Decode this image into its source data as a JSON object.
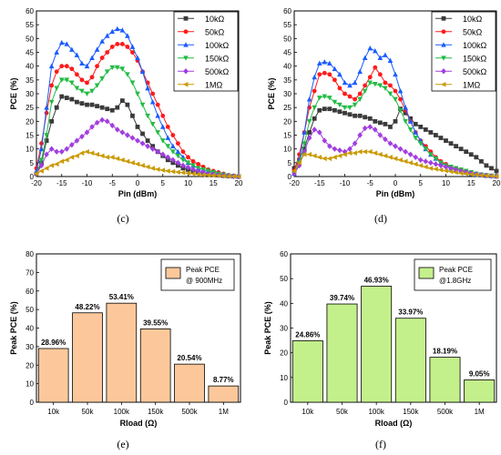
{
  "chart_data": [
    {
      "panel": "(c)",
      "type": "line",
      "xlabel": "Pin (dBm)",
      "ylabel": "PCE (%)",
      "xlim": [
        -20,
        20
      ],
      "ylim": [
        0,
        60
      ],
      "xticks": [
        -20,
        -15,
        -10,
        -5,
        0,
        5,
        10,
        15,
        20
      ],
      "yticks": [
        0,
        5,
        10,
        15,
        20,
        25,
        30,
        35,
        40,
        45,
        50,
        55,
        60
      ],
      "x_tick_labels": [
        "-20",
        "-15",
        "-10",
        "-5",
        "0",
        "5",
        "10",
        "15",
        "20"
      ],
      "y_tick_labels": [
        "0",
        "5",
        "10",
        "15",
        "20",
        "25",
        "30",
        "35",
        "40",
        "45",
        "50",
        "55",
        "60"
      ],
      "legend_position": "top-right",
      "grid": false,
      "x": [
        -20,
        -19,
        -18,
        -17,
        -16,
        -15,
        -14,
        -13,
        -12,
        -11,
        -10,
        -9,
        -8,
        -7,
        -6,
        -5,
        -4,
        -3,
        -2,
        -1,
        0,
        1,
        2,
        3,
        4,
        5,
        6,
        7,
        8,
        9,
        10,
        11,
        12,
        13,
        14,
        15,
        16,
        17,
        18,
        19,
        20
      ],
      "series": [
        {
          "name": "10kΩ",
          "color": "#3a3a3a",
          "marker": "square",
          "values": [
            1,
            5,
            13,
            20,
            25,
            29,
            28.5,
            28,
            27,
            26.5,
            26,
            26,
            25.5,
            25,
            24.5,
            24,
            25,
            27.5,
            26,
            22,
            18,
            15.5,
            13,
            11,
            9,
            7.5,
            6,
            5,
            4,
            3,
            2.5,
            2,
            1.5,
            1.2,
            1,
            0.8,
            0.5,
            0.3,
            0.2,
            0.1,
            0
          ]
        },
        {
          "name": "50kΩ",
          "color": "#ff1a1a",
          "marker": "circle",
          "values": [
            3,
            12,
            23,
            33,
            38,
            40,
            40,
            39,
            37,
            35,
            34,
            36,
            40,
            43,
            45,
            47,
            48,
            48,
            47,
            45,
            42,
            38,
            34,
            30,
            26,
            22,
            18,
            15,
            12,
            9,
            7,
            5.5,
            4.5,
            3.5,
            2.5,
            2,
            1.5,
            1,
            0.5,
            0.3,
            0.1
          ]
        },
        {
          "name": "100kΩ",
          "color": "#1a5cff",
          "marker": "triangle",
          "values": [
            2,
            10,
            25,
            40,
            45,
            48.5,
            48,
            46,
            44,
            41,
            40,
            43,
            46,
            49,
            51,
            52.5,
            53.5,
            53,
            51,
            47,
            43,
            38,
            32,
            27,
            22,
            18,
            14,
            11,
            9,
            7,
            5,
            4,
            3,
            2.5,
            2,
            1.5,
            1,
            0.7,
            0.4,
            0.2,
            0
          ]
        },
        {
          "name": "150kΩ",
          "color": "#22bb44",
          "marker": "triangle-down",
          "values": [
            1,
            6,
            15,
            27,
            32,
            35,
            35,
            34,
            32,
            31,
            30,
            31,
            33,
            35.5,
            38,
            39.5,
            39.5,
            39,
            37,
            34,
            30,
            26,
            22,
            19,
            16,
            13,
            11,
            9,
            7.5,
            6,
            5,
            4,
            3,
            2.5,
            2,
            1.5,
            1,
            0.6,
            0.3,
            0.1,
            0
          ]
        },
        {
          "name": "500kΩ",
          "color": "#a23ee0",
          "marker": "diamond",
          "values": [
            1,
            4,
            8,
            10,
            9,
            9,
            10,
            11.5,
            13,
            14.5,
            16,
            18,
            19.5,
            20.5,
            20,
            18.5,
            17,
            16,
            15,
            14,
            13,
            12,
            11,
            10,
            9,
            8,
            7,
            6,
            5,
            4,
            3.3,
            2.6,
            2,
            1.5,
            1,
            0.8,
            0.5,
            0.3,
            0.2,
            0.1,
            0
          ]
        },
        {
          "name": "1MΩ",
          "color": "#c99a00",
          "marker": "triangle-left",
          "values": [
            1,
            2,
            3,
            4,
            4.5,
            5.5,
            6,
            7,
            7.5,
            8.5,
            9,
            8.5,
            8,
            7.5,
            7,
            7,
            6.5,
            6,
            5.5,
            5,
            4.5,
            4,
            3.5,
            3,
            2.6,
            2.3,
            2,
            1.8,
            1.6,
            1.4,
            1.2,
            1,
            0.8,
            0.6,
            0.5,
            0.4,
            0.3,
            0.2,
            0.1,
            0.05,
            0
          ]
        }
      ]
    },
    {
      "panel": "(d)",
      "type": "line",
      "xlabel": "Pin (dBm)",
      "ylabel": "PCE (%)",
      "xlim": [
        -20,
        20
      ],
      "ylim": [
        0,
        60
      ],
      "xticks": [
        -20,
        -15,
        -10,
        -5,
        0,
        5,
        10,
        15,
        20
      ],
      "yticks": [
        0,
        5,
        10,
        15,
        20,
        25,
        30,
        35,
        40,
        45,
        50,
        55,
        60
      ],
      "x_tick_labels": [
        "-20",
        "-15",
        "-10",
        "-5",
        "0",
        "5",
        "10",
        "15",
        "20"
      ],
      "y_tick_labels": [
        "0",
        "5",
        "10",
        "15",
        "20",
        "25",
        "30",
        "35",
        "40",
        "45",
        "50",
        "55",
        "60"
      ],
      "legend_position": "top-right",
      "grid": false,
      "x": [
        -20,
        -19,
        -18,
        -17,
        -16,
        -15,
        -14,
        -13,
        -12,
        -11,
        -10,
        -9,
        -8,
        -7,
        -6,
        -5,
        -4,
        -3,
        -2,
        -1,
        0,
        1,
        2,
        3,
        4,
        5,
        6,
        7,
        8,
        9,
        10,
        11,
        12,
        13,
        14,
        15,
        16,
        17,
        18,
        19,
        20
      ],
      "series": [
        {
          "name": "10kΩ",
          "color": "#3a3a3a",
          "marker": "square",
          "values": [
            3,
            6,
            10,
            16,
            21,
            24,
            24.5,
            24.5,
            24,
            23.5,
            23,
            22.5,
            22,
            22,
            21.5,
            21,
            20,
            19.5,
            19,
            18,
            20,
            24.5,
            23,
            21,
            19,
            18,
            17,
            16,
            15,
            14,
            13,
            12,
            11,
            10,
            9,
            8,
            7,
            5.5,
            4,
            3,
            2
          ]
        },
        {
          "name": "50kΩ",
          "color": "#ff1a1a",
          "marker": "circle",
          "values": [
            2,
            8,
            16,
            25,
            31,
            37,
            37.5,
            37,
            35,
            32,
            30,
            29,
            28,
            30,
            33,
            36,
            39.5,
            37,
            34,
            33,
            31,
            28,
            24,
            20,
            16,
            13,
            11,
            9,
            7,
            5.5,
            4.5,
            3.5,
            3,
            2.5,
            2,
            1.5,
            1,
            0.7,
            0.4,
            0.2,
            0.1
          ]
        },
        {
          "name": "100kΩ",
          "color": "#1a5cff",
          "marker": "triangle",
          "values": [
            1,
            6,
            16,
            28,
            36,
            41,
            41.5,
            41,
            39,
            37,
            34,
            33,
            34,
            38,
            43,
            46.5,
            45.5,
            43,
            44,
            42,
            37,
            31,
            25,
            20,
            16,
            13,
            10,
            8,
            6.5,
            5,
            4,
            3,
            2.5,
            2,
            1.5,
            1,
            0.8,
            0.5,
            0.3,
            0.2,
            0.1
          ]
        },
        {
          "name": "150kΩ",
          "color": "#22bb44",
          "marker": "triangle-down",
          "values": [
            1,
            5,
            12,
            20,
            25,
            28.5,
            29,
            28.5,
            27,
            26,
            25,
            25,
            26,
            28,
            31,
            34,
            33.5,
            33,
            32,
            30,
            28,
            24,
            20,
            17,
            14,
            12,
            10,
            8,
            6.5,
            5,
            4,
            3.5,
            3,
            2.5,
            2,
            1.5,
            1,
            0.7,
            0.5,
            0.3,
            0.1
          ]
        },
        {
          "name": "500kΩ",
          "color": "#a23ee0",
          "marker": "diamond",
          "values": [
            1,
            4,
            9,
            14,
            17,
            16,
            13,
            11,
            10,
            9.5,
            9,
            10,
            12,
            15,
            17.5,
            18,
            17,
            15,
            13.5,
            12,
            11,
            10,
            9,
            8,
            7,
            6,
            5.5,
            5,
            4.5,
            4,
            3.5,
            3,
            2.5,
            2,
            1.6,
            1.2,
            0.9,
            0.6,
            0.4,
            0.2,
            0.1
          ]
        },
        {
          "name": "1MΩ",
          "color": "#c99a00",
          "marker": "triangle-left",
          "values": [
            2,
            5,
            8,
            8,
            7.5,
            7,
            6.5,
            6.5,
            7,
            7.5,
            8,
            8.5,
            8.5,
            9,
            9,
            9,
            8.5,
            8,
            7.5,
            7,
            6.5,
            6,
            5.5,
            5,
            4.5,
            4,
            3.5,
            3,
            2.7,
            2.4,
            2.1,
            1.8,
            1.5,
            1.2,
            1,
            0.8,
            0.6,
            0.4,
            0.3,
            0.2,
            0.1
          ]
        }
      ]
    },
    {
      "panel": "(e)",
      "type": "bar",
      "xlabel": "Rload (Ω)",
      "ylabel": "Peak PCE (%)",
      "ylim": [
        0,
        80
      ],
      "yticks": [
        0,
        10,
        20,
        30,
        40,
        50,
        60,
        70,
        80
      ],
      "y_tick_labels": [
        "0",
        "10",
        "20",
        "30",
        "40",
        "50",
        "60",
        "70",
        "80"
      ],
      "categories": [
        "10k",
        "50k",
        "100k",
        "150k",
        "500k",
        "1M"
      ],
      "values": [
        28.96,
        48.22,
        53.41,
        39.55,
        20.54,
        8.77
      ],
      "data_labels": [
        "28.96%",
        "48.22%",
        "53.41%",
        "39.55%",
        "20.54%",
        "8.77%"
      ],
      "legend": [
        "Peak PCE",
        "@ 900MHz"
      ],
      "legend_position": "top-right",
      "bar_color": "#fcc89b",
      "grid": false
    },
    {
      "panel": "(f)",
      "type": "bar",
      "xlabel": "Rload (Ω)",
      "ylabel": "Peak PCE (%)",
      "ylim": [
        0,
        60
      ],
      "yticks": [
        0,
        10,
        20,
        30,
        40,
        50,
        60
      ],
      "y_tick_labels": [
        "0",
        "10",
        "20",
        "30",
        "40",
        "50",
        "60"
      ],
      "categories": [
        "10k",
        "50k",
        "100k",
        "150k",
        "500k",
        "1M"
      ],
      "values": [
        24.86,
        39.74,
        46.93,
        33.97,
        18.19,
        9.05
      ],
      "data_labels": [
        "24.86%",
        "39.74%",
        "46.93%",
        "33.97%",
        "18.19%",
        "9.05%"
      ],
      "legend": [
        "Peak PCE",
        "@1.8GHz"
      ],
      "legend_position": "top-right",
      "bar_color": "#c4f08c",
      "grid": false
    }
  ]
}
